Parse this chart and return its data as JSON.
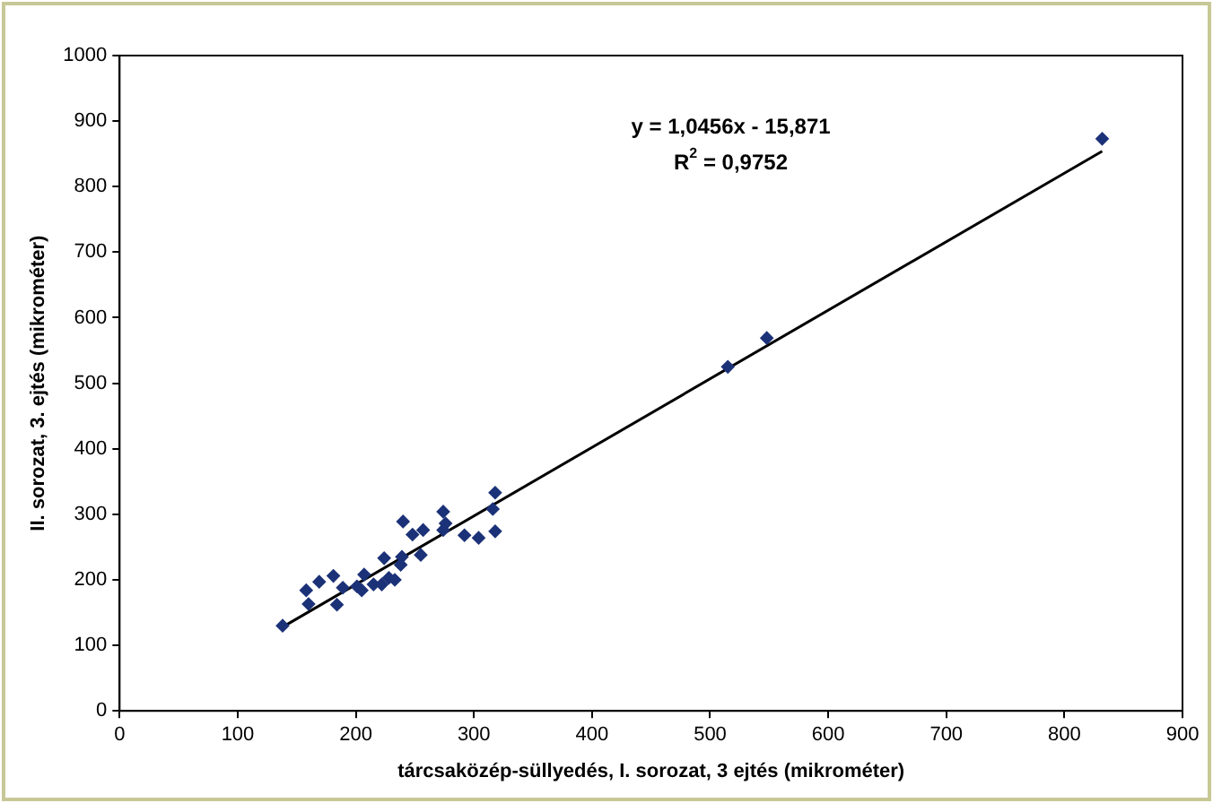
{
  "chart_data": {
    "type": "scatter",
    "xlabel": "tárcsaközép-süllyedés, I. sorozat, 3 ejtés (mikrométer)",
    "ylabel": "II. sorozat, 3. ejtés (mikrométer)",
    "xlim": [
      0,
      900
    ],
    "xticks": [
      0,
      100,
      200,
      300,
      400,
      500,
      600,
      700,
      800,
      900
    ],
    "ylim": [
      0,
      1000
    ],
    "yticks": [
      0,
      100,
      200,
      300,
      400,
      500,
      600,
      700,
      800,
      900,
      1000
    ],
    "grid": false,
    "legend": false,
    "marker": "diamond",
    "series": [
      {
        "color": "#1c3278",
        "x": [
          138,
          158,
          160,
          169,
          181,
          184,
          189,
          201,
          205,
          207,
          215,
          222,
          224,
          228,
          233,
          238,
          239,
          240,
          248,
          255,
          257,
          274,
          274,
          276,
          292,
          304,
          318,
          316,
          318,
          515,
          548,
          832
        ],
        "values": [
          130,
          184,
          163,
          197,
          206,
          162,
          188,
          190,
          184,
          208,
          193,
          193,
          233,
          203,
          200,
          223,
          235,
          289,
          269,
          238,
          276,
          304,
          276,
          286,
          268,
          264,
          333,
          308,
          274,
          525,
          569,
          873
        ]
      },
      {
        "type": "line",
        "color": "#000000",
        "marker": "none",
        "x": [
          138,
          832
        ],
        "values": [
          128,
          854
        ]
      }
    ],
    "annotations": [
      "y = 1,0456x - 15,871",
      "R$^{2}$ = 0,9752"
    ]
  }
}
